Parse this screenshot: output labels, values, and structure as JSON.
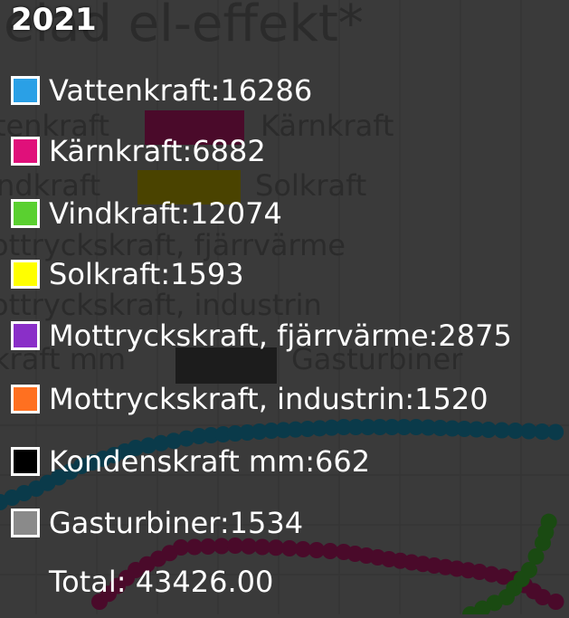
{
  "background": {
    "chart_title_fragment": "elad el-effekt*",
    "legend_fragments": [
      {
        "text": "tenkraft"
      },
      {
        "text": "Kärnkraft",
        "color": "#4a0a2a"
      },
      {
        "text": "ndkraft"
      },
      {
        "text": "Solkraft",
        "color": "#4a4300"
      },
      {
        "text": "ottryckskraft, fjärrvärme"
      },
      {
        "text": "ottryckskraft, industrin"
      },
      {
        "text": "kraft mm"
      },
      {
        "text": "Gasturbiner",
        "color": "#1c1c1c"
      }
    ]
  },
  "chart_data": {
    "type": "line",
    "title": "2021",
    "series": [
      {
        "name": "Vattenkraft",
        "value": 16286,
        "color": "#2aa0e6"
      },
      {
        "name": "Kärnkraft",
        "value": 6882,
        "color": "#e0107a"
      },
      {
        "name": "Vindkraft",
        "value": 12074,
        "color": "#5ad030"
      },
      {
        "name": "Solkraft",
        "value": 1593,
        "color": "#ffff00"
      },
      {
        "name": "Mottryckskraft, fjärrvärme",
        "value": 2875,
        "color": "#8a2fc8"
      },
      {
        "name": "Mottryckskraft, industrin",
        "value": 1520,
        "color": "#ff7020"
      },
      {
        "name": "Kondenskraft mm",
        "value": 662,
        "color": "#000000"
      },
      {
        "name": "Gasturbiner",
        "value": 1534,
        "color": "#8a8a8a"
      }
    ],
    "total_label": "Total",
    "total": "43426.00",
    "grid": true,
    "background_lines": [
      {
        "name": "Vattenkraft",
        "color": "#0a3a4a"
      },
      {
        "name": "Kärnkraft",
        "color": "#4a0a2a"
      },
      {
        "name": "Vindkraft",
        "color": "#1a4a12"
      }
    ]
  }
}
